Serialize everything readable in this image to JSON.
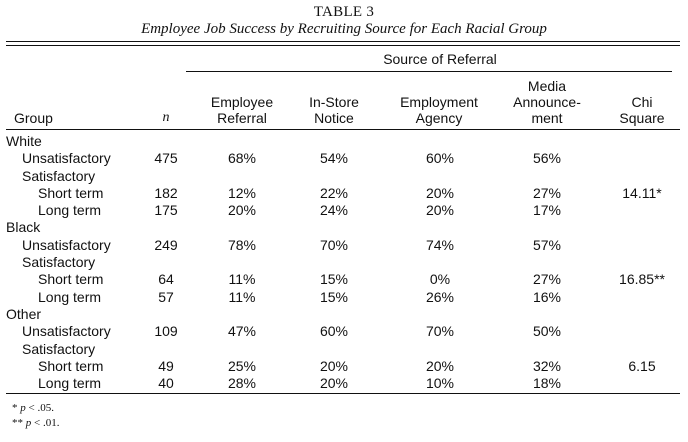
{
  "table": {
    "title": "TABLE 3",
    "subtitle": "Employee Job Success by Recruiting Source for Each Racial Group",
    "source_header": "Source of Referral",
    "columns": {
      "group": "Group",
      "n": "n",
      "employee_referral": "Employee\nReferral",
      "in_store_notice": "In-Store\nNotice",
      "employment_agency": "Employment\nAgency",
      "media_announcement": "Media\nAnnounce-\nment",
      "chi_square": "Chi\nSquare"
    },
    "rows": [
      {
        "indent": 0,
        "label": "White",
        "n": "",
        "emp": "",
        "instore": "",
        "agency": "",
        "media": "",
        "chi": ""
      },
      {
        "indent": 1,
        "label": "Unsatisfactory",
        "n": "475",
        "emp": "68%",
        "instore": "54%",
        "agency": "60%",
        "media": "56%",
        "chi": ""
      },
      {
        "indent": 1,
        "label": "Satisfactory",
        "n": "",
        "emp": "",
        "instore": "",
        "agency": "",
        "media": "",
        "chi": ""
      },
      {
        "indent": 2,
        "label": "Short term",
        "n": "182",
        "emp": "12%",
        "instore": "22%",
        "agency": "20%",
        "media": "27%",
        "chi": "14.11*"
      },
      {
        "indent": 2,
        "label": "Long term",
        "n": "175",
        "emp": "20%",
        "instore": "24%",
        "agency": "20%",
        "media": "17%",
        "chi": ""
      },
      {
        "indent": 0,
        "label": "Black",
        "n": "",
        "emp": "",
        "instore": "",
        "agency": "",
        "media": "",
        "chi": ""
      },
      {
        "indent": 1,
        "label": "Unsatisfactory",
        "n": "249",
        "emp": "78%",
        "instore": "70%",
        "agency": "74%",
        "media": "57%",
        "chi": ""
      },
      {
        "indent": 1,
        "label": "Satisfactory",
        "n": "",
        "emp": "",
        "instore": "",
        "agency": "",
        "media": "",
        "chi": ""
      },
      {
        "indent": 2,
        "label": "Short term",
        "n": "64",
        "emp": "11%",
        "instore": "15%",
        "agency": "0%",
        "media": "27%",
        "chi": "16.85**"
      },
      {
        "indent": 2,
        "label": "Long term",
        "n": "57",
        "emp": "11%",
        "instore": "15%",
        "agency": "26%",
        "media": "16%",
        "chi": ""
      },
      {
        "indent": 0,
        "label": "Other",
        "n": "",
        "emp": "",
        "instore": "",
        "agency": "",
        "media": "",
        "chi": ""
      },
      {
        "indent": 1,
        "label": "Unsatisfactory",
        "n": "109",
        "emp": "47%",
        "instore": "60%",
        "agency": "70%",
        "media": "50%",
        "chi": ""
      },
      {
        "indent": 1,
        "label": "Satisfactory",
        "n": "",
        "emp": "",
        "instore": "",
        "agency": "",
        "media": "",
        "chi": ""
      },
      {
        "indent": 2,
        "label": "Short term",
        "n": "49",
        "emp": "25%",
        "instore": "20%",
        "agency": "20%",
        "media": "32%",
        "chi": "6.15"
      },
      {
        "indent": 2,
        "label": "Long term",
        "n": "40",
        "emp": "28%",
        "instore": "20%",
        "agency": "10%",
        "media": "18%",
        "chi": ""
      }
    ],
    "footnotes": [
      {
        "marker": "*",
        "p": "p",
        "rest": " < .05."
      },
      {
        "marker": "**",
        "p": "p",
        "rest": " < .01."
      }
    ]
  }
}
